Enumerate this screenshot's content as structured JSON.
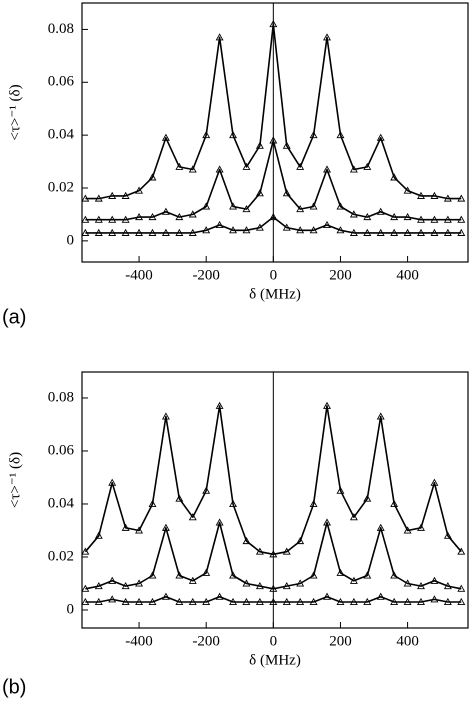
{
  "chart_data": [
    {
      "type": "line",
      "panel_label": "(a)",
      "x_label": "δ (MHz)",
      "y_label": "<τ>⁻¹ (δ)",
      "x": [
        -560,
        -520,
        -480,
        -440,
        -400,
        -360,
        -320,
        -280,
        -240,
        -200,
        -160,
        -120,
        -80,
        -40,
        0,
        40,
        80,
        120,
        160,
        200,
        240,
        280,
        320,
        360,
        400,
        440,
        480,
        520,
        560
      ],
      "series": [
        {
          "color": "#000000",
          "values": [
            0.016,
            0.016,
            0.017,
            0.017,
            0.019,
            0.024,
            0.039,
            0.028,
            0.027,
            0.04,
            0.077,
            0.04,
            0.028,
            0.036,
            0.082,
            0.036,
            0.028,
            0.04,
            0.077,
            0.04,
            0.027,
            0.028,
            0.039,
            0.024,
            0.019,
            0.017,
            0.017,
            0.016,
            0.016
          ]
        },
        {
          "color": "#000000",
          "values": [
            0.008,
            0.008,
            0.008,
            0.008,
            0.009,
            0.009,
            0.011,
            0.009,
            0.01,
            0.013,
            0.027,
            0.013,
            0.012,
            0.018,
            0.038,
            0.018,
            0.012,
            0.013,
            0.027,
            0.013,
            0.01,
            0.009,
            0.011,
            0.009,
            0.009,
            0.008,
            0.008,
            0.008,
            0.008
          ]
        },
        {
          "color": "#000000",
          "values": [
            0.003,
            0.003,
            0.003,
            0.003,
            0.003,
            0.003,
            0.003,
            0.003,
            0.003,
            0.004,
            0.006,
            0.004,
            0.004,
            0.005,
            0.009,
            0.005,
            0.004,
            0.004,
            0.006,
            0.004,
            0.003,
            0.003,
            0.003,
            0.003,
            0.003,
            0.003,
            0.003,
            0.003,
            0.003
          ]
        }
      ],
      "xlim": [
        -570,
        580
      ],
      "xticks": [
        -400,
        -200,
        0,
        200,
        400
      ],
      "ylim": [
        -0.008,
        0.09
      ],
      "yticks": [
        0,
        0.02,
        0.04,
        0.06,
        0.08
      ]
    },
    {
      "type": "line",
      "panel_label": "(b)",
      "x_label": "δ (MHz)",
      "y_label": "<τ>⁻¹ (δ)",
      "x": [
        -560,
        -520,
        -480,
        -440,
        -400,
        -360,
        -320,
        -280,
        -240,
        -200,
        -160,
        -120,
        -80,
        -40,
        0,
        40,
        80,
        120,
        160,
        200,
        240,
        280,
        320,
        360,
        400,
        440,
        480,
        520,
        560
      ],
      "series": [
        {
          "color": "#000000",
          "values": [
            0.022,
            0.028,
            0.048,
            0.031,
            0.03,
            0.04,
            0.073,
            0.042,
            0.035,
            0.045,
            0.077,
            0.04,
            0.026,
            0.022,
            0.021,
            0.022,
            0.026,
            0.04,
            0.077,
            0.045,
            0.035,
            0.042,
            0.073,
            0.04,
            0.03,
            0.031,
            0.048,
            0.028,
            0.022
          ]
        },
        {
          "color": "#000000",
          "values": [
            0.008,
            0.009,
            0.011,
            0.009,
            0.01,
            0.013,
            0.031,
            0.013,
            0.011,
            0.014,
            0.033,
            0.013,
            0.01,
            0.009,
            0.008,
            0.009,
            0.01,
            0.013,
            0.033,
            0.014,
            0.011,
            0.013,
            0.031,
            0.013,
            0.01,
            0.009,
            0.011,
            0.009,
            0.008
          ]
        },
        {
          "color": "#000000",
          "values": [
            0.003,
            0.003,
            0.004,
            0.003,
            0.003,
            0.003,
            0.005,
            0.003,
            0.003,
            0.003,
            0.005,
            0.003,
            0.003,
            0.003,
            0.003,
            0.003,
            0.003,
            0.003,
            0.005,
            0.003,
            0.003,
            0.003,
            0.005,
            0.003,
            0.003,
            0.003,
            0.004,
            0.003,
            0.003
          ]
        }
      ],
      "xlim": [
        -570,
        580
      ],
      "xticks": [
        -400,
        -200,
        0,
        200,
        400
      ],
      "ylim": [
        -0.0068,
        0.0898
      ],
      "yticks": [
        0,
        0.02,
        0.04,
        0.06,
        0.08
      ]
    }
  ]
}
